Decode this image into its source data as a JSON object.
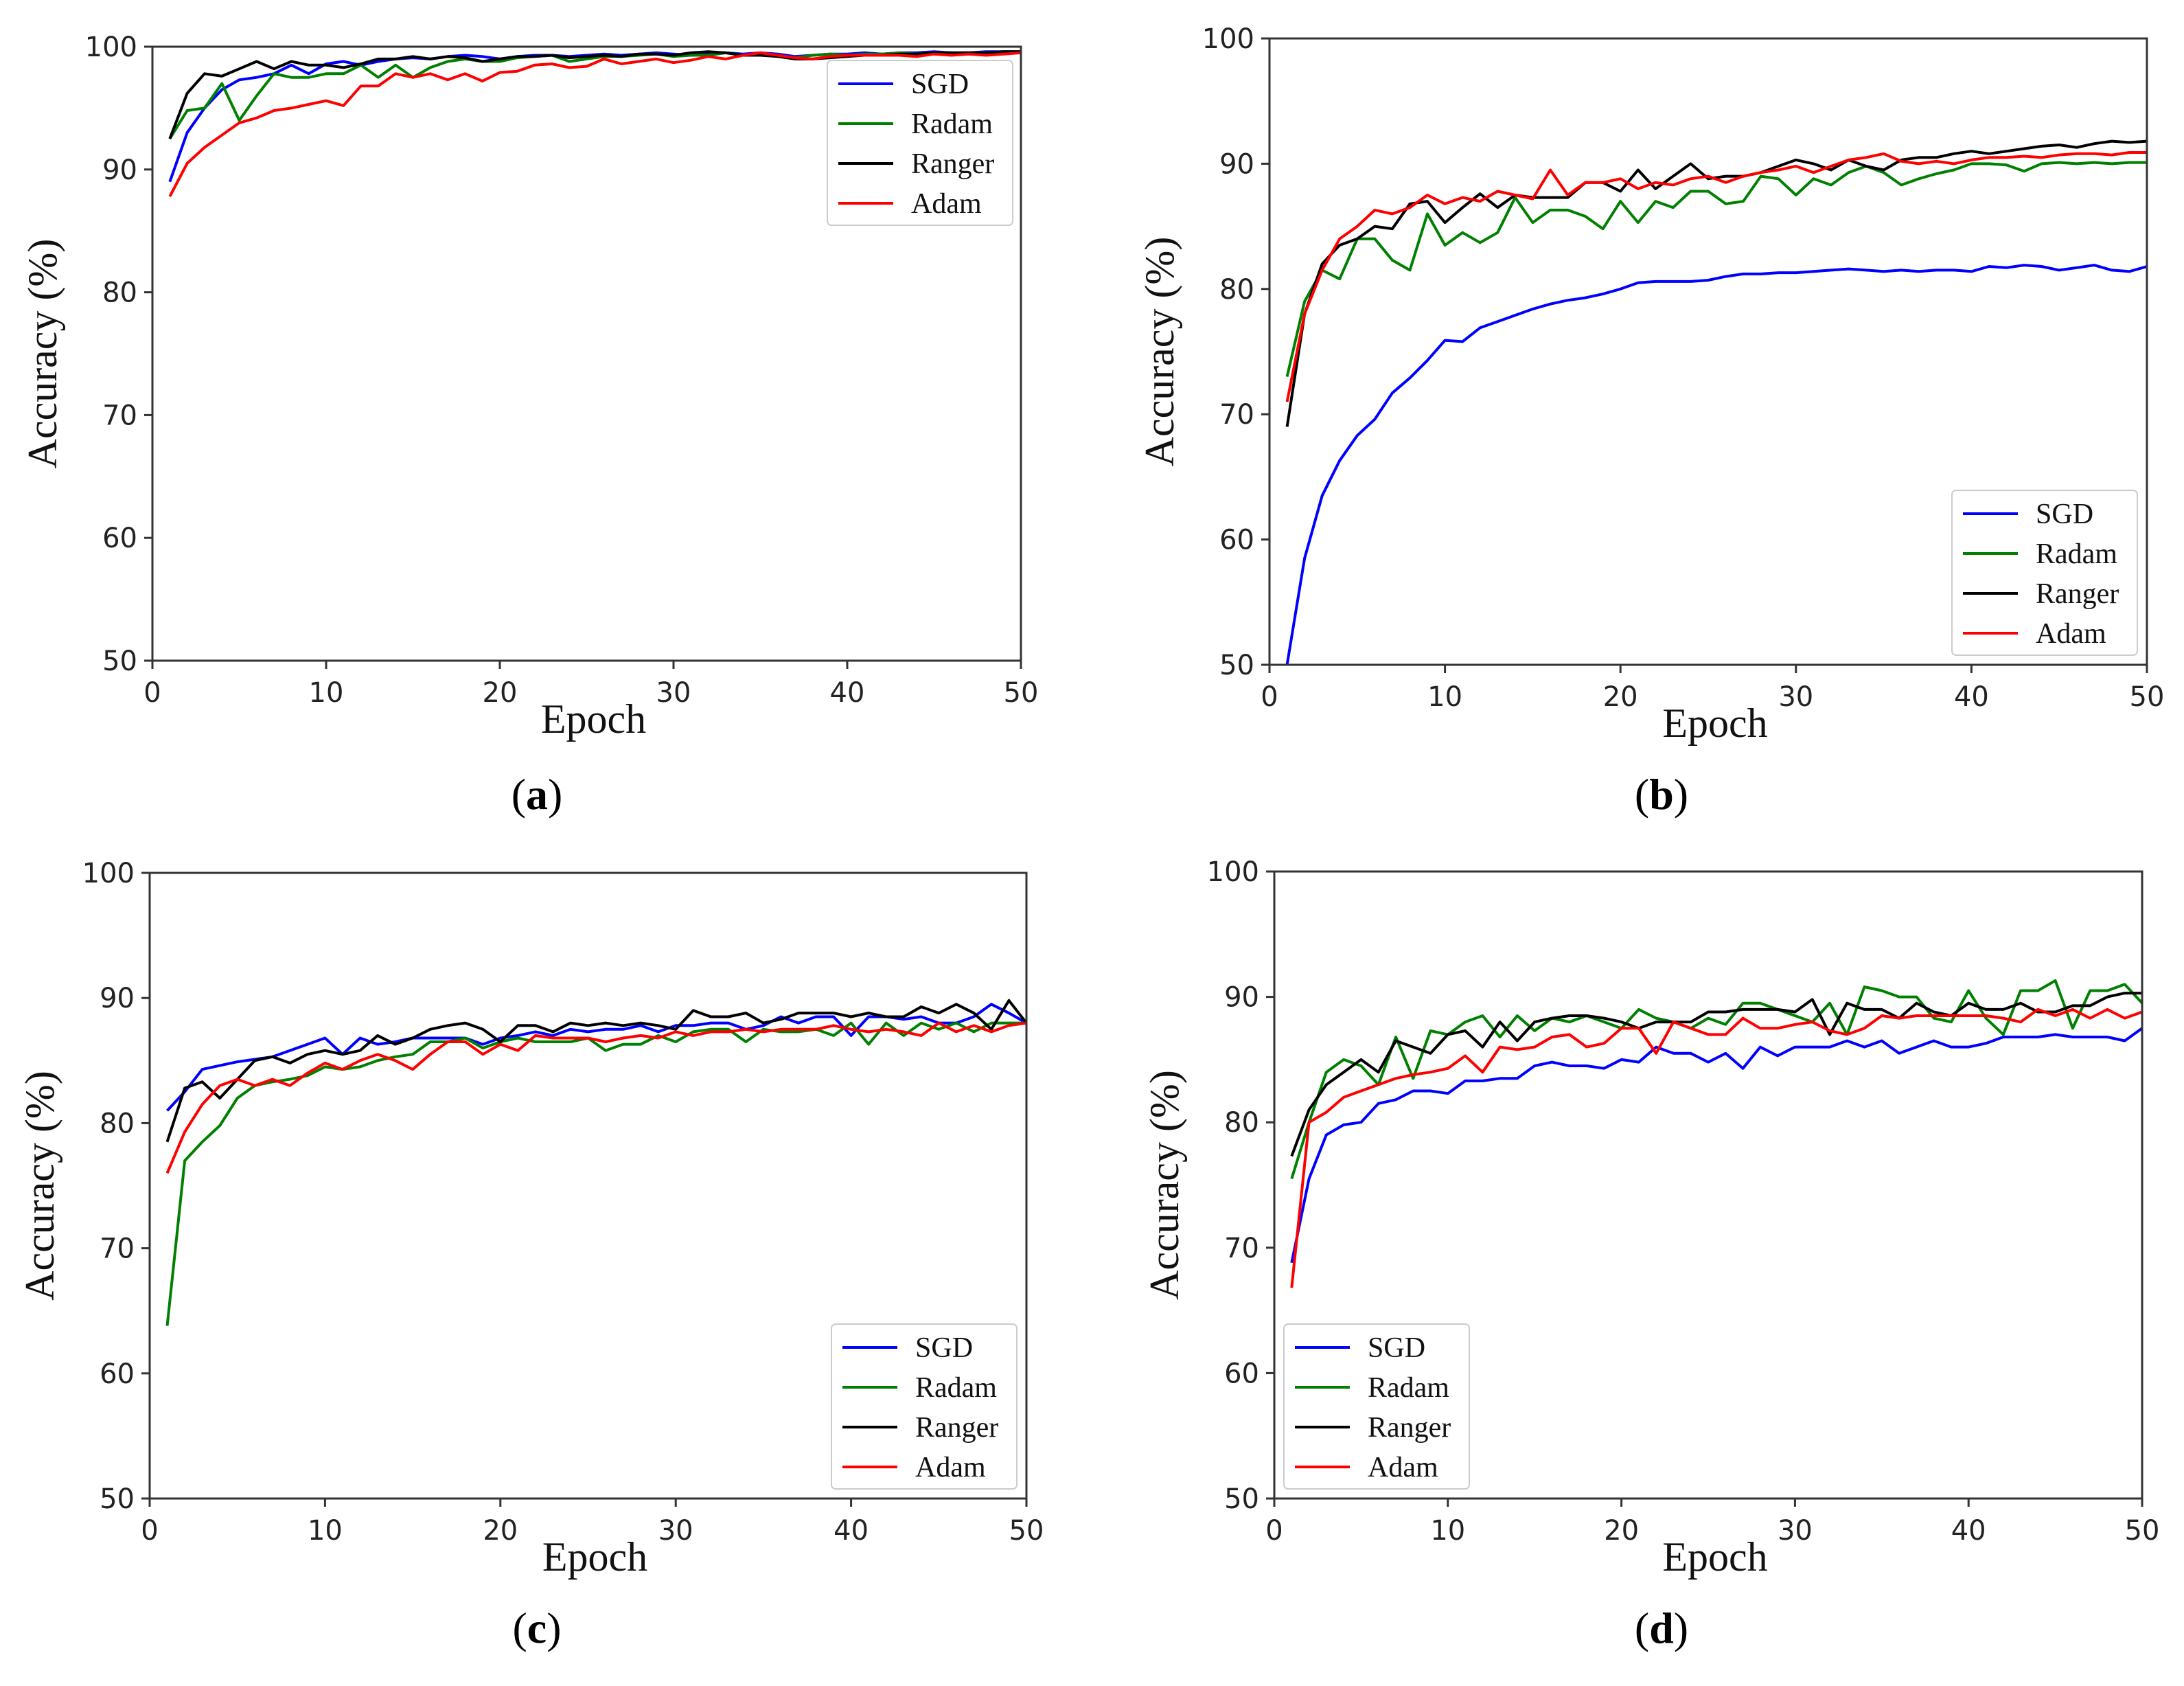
{
  "figure": {
    "colors": {
      "SGD": "#0000ff",
      "Radam": "#008000",
      "Ranger": "#000000",
      "Adam": "#ff0000"
    }
  },
  "chart_data": [
    {
      "type": "line",
      "panel": "a",
      "caption": "(a)",
      "caption_letter": "a",
      "xlabel": "Epoch",
      "ylabel": "Accuracy (%)",
      "xlim": [
        0,
        50
      ],
      "ylim": [
        50,
        100
      ],
      "xticks": [
        0,
        10,
        20,
        30,
        40,
        50
      ],
      "yticks": [
        50,
        60,
        70,
        80,
        90,
        100
      ],
      "legend": "top-right",
      "series": [
        {
          "name": "SGD",
          "values": [
            89.0,
            93.0,
            95.0,
            96.5,
            97.3,
            97.5,
            97.8,
            98.5,
            97.8,
            98.6,
            98.8,
            98.5,
            98.8,
            99.0,
            99.1,
            99.0,
            99.2,
            99.3,
            99.2,
            99.0,
            99.2,
            99.3,
            99.3,
            99.2,
            99.3,
            99.4,
            99.3,
            99.4,
            99.5,
            99.4,
            99.3,
            99.4,
            99.5,
            99.4,
            99.5,
            99.4,
            99.2,
            99.3,
            99.4,
            99.4,
            99.5,
            99.4,
            99.5,
            99.5,
            99.6,
            99.5,
            99.5,
            99.6,
            99.6,
            99.6
          ]
        },
        {
          "name": "Radam",
          "values": [
            92.5,
            94.8,
            95.0,
            97.0,
            94.0,
            96.0,
            97.8,
            97.5,
            97.5,
            97.8,
            97.8,
            98.5,
            97.5,
            98.5,
            97.5,
            98.3,
            98.8,
            99.0,
            98.8,
            98.8,
            99.1,
            99.2,
            99.3,
            98.8,
            99.0,
            99.2,
            99.2,
            99.3,
            99.4,
            99.2,
            99.3,
            99.3,
            99.5,
            99.3,
            99.4,
            99.3,
            99.1,
            99.3,
            99.4,
            99.3,
            99.4,
            99.4,
            99.5,
            99.4,
            99.5,
            99.5,
            99.5,
            99.5,
            99.6,
            99.6
          ]
        },
        {
          "name": "Ranger",
          "values": [
            92.5,
            96.2,
            97.8,
            97.6,
            98.2,
            98.8,
            98.2,
            98.8,
            98.5,
            98.5,
            98.3,
            98.6,
            99.0,
            99.0,
            99.2,
            99.0,
            99.2,
            99.1,
            98.8,
            99.0,
            99.2,
            99.2,
            99.3,
            99.1,
            99.2,
            99.3,
            99.2,
            99.4,
            99.4,
            99.3,
            99.5,
            99.6,
            99.5,
            99.3,
            99.3,
            99.2,
            99.0,
            99.0,
            99.1,
            99.2,
            99.3,
            99.3,
            99.4,
            99.4,
            99.5,
            99.5,
            99.5,
            99.5,
            99.6,
            99.6
          ]
        },
        {
          "name": "Adam",
          "values": [
            87.8,
            90.5,
            91.8,
            92.8,
            93.8,
            94.2,
            94.8,
            95.0,
            95.3,
            95.6,
            95.2,
            96.8,
            96.8,
            97.8,
            97.5,
            97.8,
            97.3,
            97.8,
            97.2,
            97.9,
            98.0,
            98.5,
            98.6,
            98.3,
            98.4,
            99.0,
            98.6,
            98.8,
            99.0,
            98.7,
            98.9,
            99.2,
            99.0,
            99.3,
            99.5,
            99.3,
            99.1,
            99.0,
            99.2,
            99.3,
            99.3,
            99.3,
            99.3,
            99.2,
            99.4,
            99.3,
            99.4,
            99.3,
            99.4,
            99.5
          ]
        }
      ]
    },
    {
      "type": "line",
      "panel": "b",
      "caption": "(b)",
      "caption_letter": "b",
      "xlabel": "Epoch",
      "ylabel": "Accuracy (%)",
      "xlim": [
        0,
        50
      ],
      "ylim": [
        50,
        100
      ],
      "xticks": [
        0,
        10,
        20,
        30,
        40,
        50
      ],
      "yticks": [
        50,
        60,
        70,
        80,
        90,
        100
      ],
      "legend": "lower-right",
      "series": [
        {
          "name": "SGD",
          "values": [
            50.0,
            58.5,
            63.5,
            66.3,
            68.3,
            69.6,
            71.7,
            72.9,
            74.3,
            75.9,
            75.8,
            76.9,
            77.4,
            77.9,
            78.4,
            78.8,
            79.1,
            79.3,
            79.6,
            80.0,
            80.5,
            80.6,
            80.6,
            80.6,
            80.7,
            81.0,
            81.2,
            81.2,
            81.3,
            81.3,
            81.4,
            81.5,
            81.6,
            81.5,
            81.4,
            81.5,
            81.4,
            81.5,
            81.5,
            81.4,
            81.8,
            81.7,
            81.9,
            81.8,
            81.5,
            81.7,
            81.9,
            81.5,
            81.4,
            81.8
          ]
        },
        {
          "name": "Radam",
          "values": [
            73.0,
            79.0,
            81.5,
            80.8,
            84.0,
            84.0,
            82.3,
            81.5,
            86.0,
            83.5,
            84.5,
            83.7,
            84.5,
            87.3,
            85.3,
            86.3,
            86.3,
            85.8,
            84.8,
            87.0,
            85.3,
            87.0,
            86.5,
            87.8,
            87.8,
            86.8,
            87.0,
            89.0,
            88.8,
            87.5,
            88.8,
            88.3,
            89.3,
            89.8,
            89.3,
            88.3,
            88.8,
            89.2,
            89.5,
            90.0,
            90.0,
            89.9,
            89.4,
            90.0,
            90.1,
            90.0,
            90.1,
            90.0,
            90.1,
            90.1
          ]
        },
        {
          "name": "Ranger",
          "values": [
            69.0,
            78.0,
            82.0,
            83.5,
            84.0,
            85.0,
            84.8,
            86.8,
            87.0,
            85.3,
            86.5,
            87.6,
            86.5,
            87.5,
            87.3,
            87.3,
            87.3,
            88.5,
            88.5,
            87.8,
            89.5,
            88.0,
            89.0,
            90.0,
            88.8,
            89.0,
            89.0,
            89.3,
            89.8,
            90.3,
            90.0,
            89.5,
            90.3,
            89.8,
            89.5,
            90.3,
            90.5,
            90.5,
            90.8,
            91.0,
            90.8,
            91.0,
            91.2,
            91.4,
            91.5,
            91.3,
            91.6,
            91.8,
            91.7,
            91.8
          ]
        },
        {
          "name": "Adam",
          "values": [
            71.0,
            78.0,
            81.5,
            84.0,
            85.0,
            86.3,
            86.0,
            86.5,
            87.5,
            86.8,
            87.3,
            87.0,
            87.8,
            87.5,
            87.2,
            89.5,
            87.5,
            88.5,
            88.5,
            88.8,
            88.0,
            88.5,
            88.3,
            88.8,
            89.0,
            88.5,
            89.0,
            89.3,
            89.5,
            89.8,
            89.3,
            89.8,
            90.3,
            90.5,
            90.8,
            90.2,
            90.0,
            90.2,
            90.0,
            90.3,
            90.5,
            90.5,
            90.6,
            90.5,
            90.7,
            90.8,
            90.8,
            90.7,
            90.9,
            90.9
          ]
        }
      ]
    },
    {
      "type": "line",
      "panel": "c",
      "caption": "(c)",
      "caption_letter": "c",
      "xlabel": "Epoch",
      "ylabel": "Accuracy (%)",
      "xlim": [
        0,
        50
      ],
      "ylim": [
        50,
        100
      ],
      "xticks": [
        0,
        10,
        20,
        30,
        40,
        50
      ],
      "yticks": [
        50,
        60,
        70,
        80,
        90,
        100
      ],
      "legend": "lower-right",
      "series": [
        {
          "name": "SGD",
          "values": [
            81.0,
            82.5,
            84.3,
            84.6,
            84.9,
            85.1,
            85.3,
            85.8,
            86.3,
            86.8,
            85.5,
            86.8,
            86.3,
            86.5,
            86.8,
            86.8,
            86.8,
            86.8,
            86.3,
            86.8,
            87.0,
            87.3,
            87.0,
            87.5,
            87.3,
            87.5,
            87.5,
            87.8,
            87.3,
            87.8,
            87.8,
            88.0,
            88.0,
            87.5,
            87.8,
            88.5,
            88.0,
            88.5,
            88.5,
            87.0,
            88.5,
            88.5,
            88.3,
            88.5,
            88.0,
            88.0,
            88.5,
            89.5,
            88.8,
            88.0
          ]
        },
        {
          "name": "Radam",
          "values": [
            63.8,
            77.0,
            78.5,
            79.8,
            82.0,
            83.0,
            83.3,
            83.5,
            83.8,
            84.5,
            84.3,
            84.5,
            85.0,
            85.3,
            85.5,
            86.5,
            86.5,
            86.8,
            86.0,
            86.5,
            86.8,
            86.5,
            86.5,
            86.5,
            86.8,
            85.8,
            86.3,
            86.3,
            87.0,
            86.5,
            87.3,
            87.5,
            87.5,
            86.5,
            87.5,
            87.3,
            87.3,
            87.5,
            87.0,
            88.0,
            86.3,
            88.0,
            87.0,
            88.0,
            87.5,
            88.0,
            87.3,
            88.0,
            88.0,
            88.0
          ]
        },
        {
          "name": "Ranger",
          "values": [
            78.5,
            82.8,
            83.3,
            82.0,
            83.5,
            85.0,
            85.3,
            84.8,
            85.5,
            85.8,
            85.5,
            85.8,
            87.0,
            86.3,
            86.8,
            87.5,
            87.8,
            88.0,
            87.5,
            86.5,
            87.8,
            87.8,
            87.3,
            88.0,
            87.8,
            88.0,
            87.8,
            88.0,
            87.8,
            87.5,
            89.0,
            88.5,
            88.5,
            88.8,
            88.0,
            88.3,
            88.8,
            88.8,
            88.8,
            88.5,
            88.8,
            88.5,
            88.5,
            89.3,
            88.8,
            89.5,
            88.8,
            87.5,
            89.8,
            88.0
          ]
        },
        {
          "name": "Adam",
          "values": [
            76.0,
            79.3,
            81.5,
            83.0,
            83.5,
            83.0,
            83.5,
            83.0,
            84.0,
            84.8,
            84.3,
            85.0,
            85.5,
            85.0,
            84.3,
            85.5,
            86.5,
            86.5,
            85.5,
            86.3,
            85.8,
            87.0,
            86.8,
            86.8,
            86.8,
            86.5,
            86.8,
            87.0,
            86.8,
            87.3,
            87.0,
            87.3,
            87.3,
            87.5,
            87.3,
            87.5,
            87.5,
            87.5,
            87.8,
            87.5,
            87.3,
            87.5,
            87.3,
            87.0,
            88.0,
            87.3,
            87.8,
            87.3,
            87.8,
            88.0
          ]
        }
      ]
    },
    {
      "type": "line",
      "panel": "d",
      "caption": "(d)",
      "caption_letter": "d",
      "xlabel": "Epoch",
      "ylabel": "Accuracy (%)",
      "xlim": [
        0,
        50
      ],
      "ylim": [
        50,
        100
      ],
      "xticks": [
        0,
        10,
        20,
        30,
        40,
        50
      ],
      "yticks": [
        50,
        60,
        70,
        80,
        90,
        100
      ],
      "legend": "lower-left",
      "series": [
        {
          "name": "SGD",
          "values": [
            68.8,
            75.5,
            79.0,
            79.8,
            80.0,
            81.5,
            81.8,
            82.5,
            82.5,
            82.3,
            83.3,
            83.3,
            83.5,
            83.5,
            84.5,
            84.8,
            84.5,
            84.5,
            84.3,
            85.0,
            84.8,
            86.0,
            85.5,
            85.5,
            84.8,
            85.5,
            84.3,
            86.0,
            85.3,
            86.0,
            86.0,
            86.0,
            86.5,
            86.0,
            86.5,
            85.5,
            86.0,
            86.5,
            86.0,
            86.0,
            86.3,
            86.8,
            86.8,
            86.8,
            87.0,
            86.8,
            86.8,
            86.8,
            86.5,
            87.5
          ]
        },
        {
          "name": "Radam",
          "values": [
            75.5,
            80.0,
            84.0,
            85.0,
            84.5,
            83.0,
            86.8,
            83.5,
            87.3,
            87.0,
            88.0,
            88.5,
            86.8,
            88.5,
            87.3,
            88.3,
            88.0,
            88.5,
            88.0,
            87.5,
            89.0,
            88.3,
            88.0,
            87.5,
            88.3,
            87.8,
            89.5,
            89.5,
            89.0,
            88.5,
            88.0,
            89.5,
            87.0,
            90.8,
            90.5,
            90.0,
            90.0,
            88.3,
            88.0,
            90.5,
            88.3,
            87.0,
            90.5,
            90.5,
            91.3,
            87.5,
            90.5,
            90.5,
            91.0,
            89.5
          ]
        },
        {
          "name": "Ranger",
          "values": [
            77.3,
            81.0,
            83.0,
            84.0,
            85.0,
            84.0,
            86.5,
            86.0,
            85.5,
            87.0,
            87.3,
            86.0,
            88.0,
            86.5,
            88.0,
            88.3,
            88.5,
            88.5,
            88.3,
            88.0,
            87.5,
            88.0,
            88.0,
            88.0,
            88.8,
            88.8,
            89.0,
            89.0,
            89.0,
            88.8,
            89.8,
            87.0,
            89.5,
            89.0,
            89.0,
            88.3,
            89.5,
            88.8,
            88.5,
            89.5,
            89.0,
            89.0,
            89.5,
            88.8,
            88.8,
            89.3,
            89.3,
            90.0,
            90.3,
            90.3
          ]
        },
        {
          "name": "Adam",
          "values": [
            66.8,
            80.0,
            80.8,
            82.0,
            82.5,
            83.0,
            83.5,
            83.8,
            84.0,
            84.3,
            85.3,
            84.0,
            86.0,
            85.8,
            86.0,
            86.8,
            87.0,
            86.0,
            86.3,
            87.5,
            87.5,
            85.5,
            88.0,
            87.5,
            87.0,
            87.0,
            88.3,
            87.5,
            87.5,
            87.8,
            88.0,
            87.3,
            87.0,
            87.5,
            88.5,
            88.3,
            88.5,
            88.5,
            88.5,
            88.5,
            88.5,
            88.3,
            88.0,
            89.0,
            88.5,
            89.0,
            88.3,
            89.0,
            88.3,
            88.8
          ]
        }
      ]
    }
  ]
}
